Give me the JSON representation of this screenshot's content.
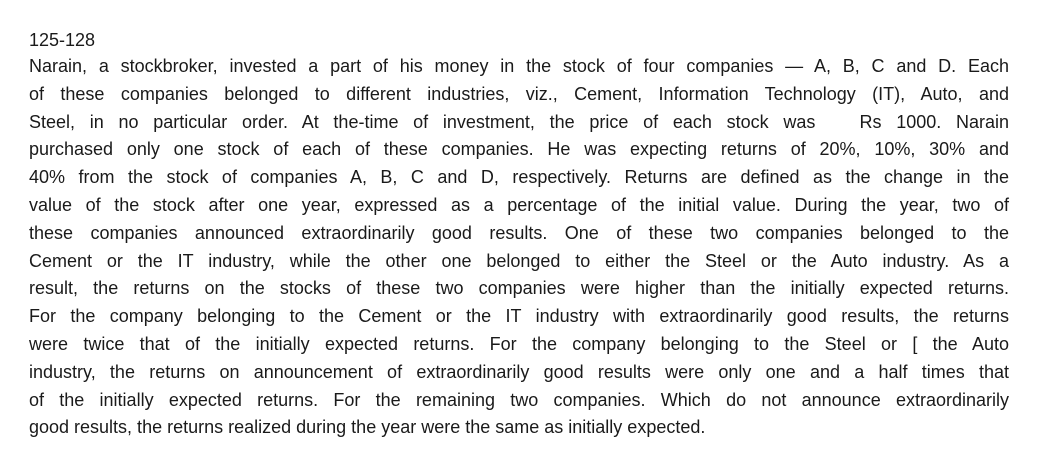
{
  "question_range": "125-128",
  "passage_lines": [
    "Narain, a stockbroker, invested a part of his money in the stock of four companies — A, B, C and D. Each",
    "of these companies belonged to different industries, viz., Cement, Information Technology (IT), Auto, and",
    "Steel, in no particular order. At the-time of investment, the price of each stock was   Rs 1000. Narain",
    "purchased only one stock of each of these companies. He was expecting returns of 20%, 10%, 30% and",
    "40% from the stock of companies A, B, C and D, respectively. Returns are defined as the change in the",
    "value of the stock after one year, expressed as a percentage of the initial value. During the year, two of",
    "these companies announced extraordinarily good results. One of these two companies belonged to the",
    "Cement or the IT industry, while the other one belonged to either the Steel or the Auto industry. As a",
    "result, the returns on the stocks of these two companies were higher than the initially expected returns.",
    "For the company belonging to the Cement or the IT industry with extraordinarily good results, the returns",
    "were twice that of the initially expected returns. For the company belonging to the Steel or [ the Auto",
    "industry, the returns on announcement of extraordinarily good results were only one and a half times that",
    "of the initially expected returns. For the remaining two companies. Which do not announce extraordinarily",
    "good results, the returns realized during the year were the same as initially expected."
  ]
}
